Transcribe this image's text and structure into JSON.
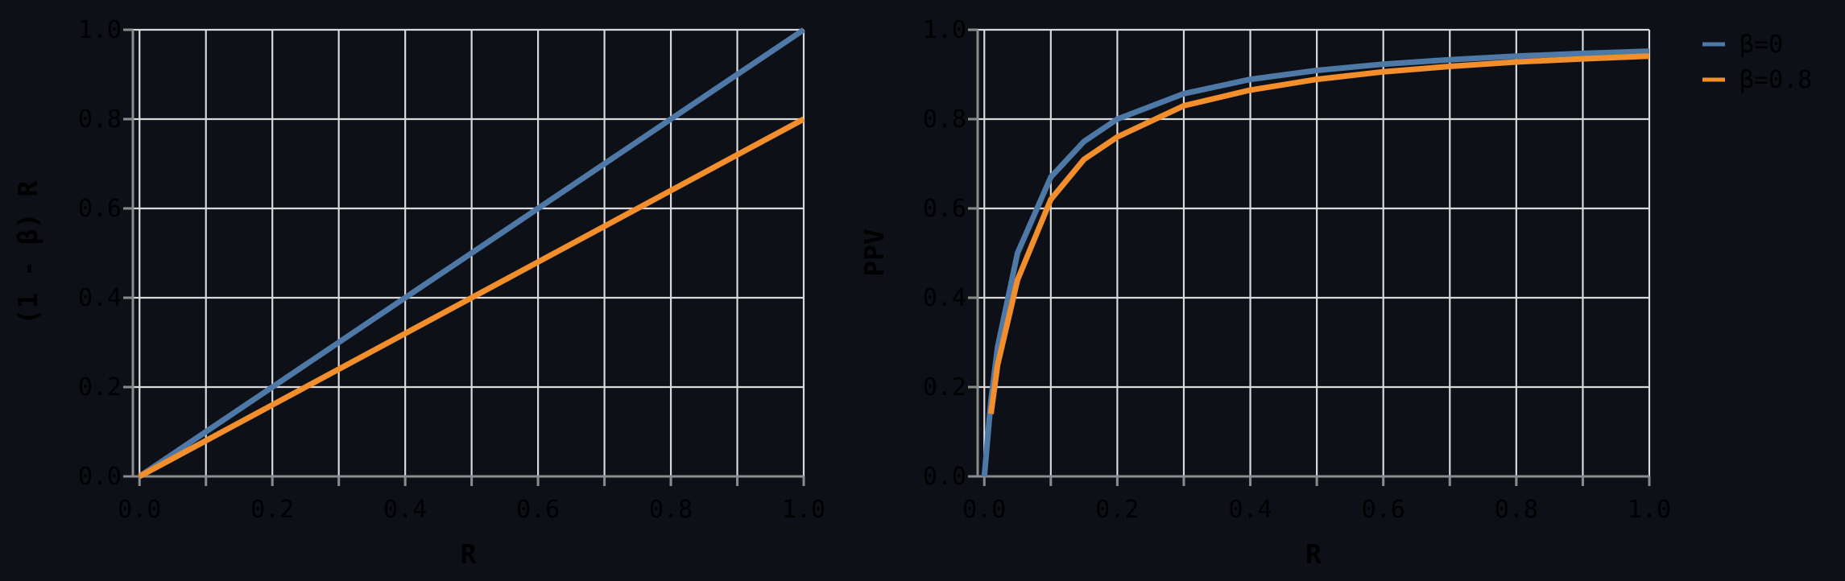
{
  "chart_data": [
    {
      "type": "line",
      "xlabel": "R",
      "ylabel": "(1 - β) R",
      "xlim": [
        -0.01,
        1.0
      ],
      "ylim": [
        0.0,
        1.0
      ],
      "xticks": [
        0.0,
        0.1,
        0.2,
        0.3,
        0.4,
        0.5,
        0.6,
        0.7,
        0.8,
        0.9,
        1.0
      ],
      "xtick_labels": [
        "0.0",
        "0.2",
        "0.4",
        "0.6",
        "0.8",
        "1.0"
      ],
      "yticks": [
        0.0,
        0.2,
        0.4,
        0.6,
        0.8,
        1.0
      ],
      "ytick_labels": [
        "0.0",
        "0.2",
        "0.4",
        "0.6",
        "0.8",
        "1.0"
      ],
      "grid": true,
      "series": [
        {
          "name": "β=0",
          "color": "#4e79a7",
          "x": [
            0.0,
            0.2,
            0.4,
            0.6,
            0.8,
            1.0
          ],
          "y": [
            0.0,
            0.2,
            0.4,
            0.6,
            0.8,
            1.0
          ]
        },
        {
          "name": "β=0.8",
          "color": "#f28e2b",
          "x": [
            0.0,
            0.2,
            0.4,
            0.6,
            0.8,
            1.0
          ],
          "y": [
            0.0,
            0.16,
            0.32,
            0.48,
            0.64,
            0.8
          ]
        }
      ]
    },
    {
      "type": "line",
      "xlabel": "R",
      "ylabel": "PPV",
      "xlim": [
        -0.01,
        1.0
      ],
      "ylim": [
        0.0,
        1.0
      ],
      "xticks": [
        0.0,
        0.1,
        0.2,
        0.3,
        0.4,
        0.5,
        0.6,
        0.7,
        0.8,
        0.9,
        1.0
      ],
      "xtick_labels": [
        "0.0",
        "0.2",
        "0.4",
        "0.6",
        "0.8",
        "1.0"
      ],
      "yticks": [
        0.0,
        0.2,
        0.4,
        0.6,
        0.8,
        1.0
      ],
      "ytick_labels": [
        "0.0",
        "0.2",
        "0.4",
        "0.6",
        "0.8",
        "1.0"
      ],
      "grid": true,
      "legend": "outside-right",
      "series": [
        {
          "name": "β=0",
          "color": "#4e79a7",
          "x": [
            0.0,
            0.01,
            0.02,
            0.05,
            0.1,
            0.15,
            0.2,
            0.3,
            0.4,
            0.5,
            0.6,
            0.7,
            0.8,
            0.9,
            1.0
          ],
          "y": [
            0.0,
            0.17,
            0.29,
            0.5,
            0.67,
            0.75,
            0.8,
            0.857,
            0.889,
            0.909,
            0.923,
            0.933,
            0.941,
            0.947,
            0.952
          ]
        },
        {
          "name": "β=0.8",
          "color": "#f28e2b",
          "x": [
            0.01,
            0.02,
            0.05,
            0.1,
            0.15,
            0.2,
            0.3,
            0.4,
            0.5,
            0.6,
            0.7,
            0.8,
            0.9,
            1.0
          ],
          "y": [
            0.14,
            0.25,
            0.44,
            0.62,
            0.71,
            0.76,
            0.83,
            0.865,
            0.889,
            0.906,
            0.918,
            0.928,
            0.935,
            0.941
          ]
        }
      ]
    }
  ],
  "legend": {
    "entries": [
      {
        "label": "β=0",
        "color": "#4e79a7"
      },
      {
        "label": "β=0.8",
        "color": "#f28e2b"
      }
    ]
  }
}
